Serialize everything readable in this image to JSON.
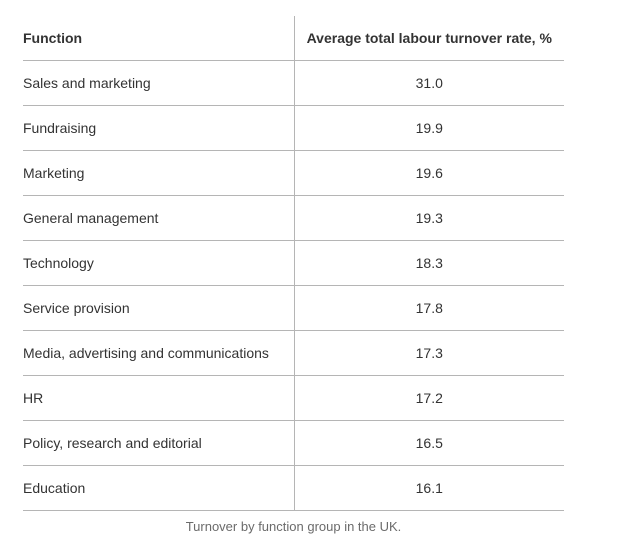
{
  "table": {
    "columns": [
      "Function",
      "Average total labour turnover rate, %"
    ],
    "rows": [
      {
        "function": "Sales and marketing",
        "rate": "31.0"
      },
      {
        "function": "Fundraising",
        "rate": "19.9"
      },
      {
        "function": "Marketing",
        "rate": "19.6"
      },
      {
        "function": "General management",
        "rate": "19.3"
      },
      {
        "function": "Technology",
        "rate": "18.3"
      },
      {
        "function": "Service provision",
        "rate": "17.8"
      },
      {
        "function": "Media, advertising and communications",
        "rate": "17.3"
      },
      {
        "function": "HR",
        "rate": "17.2"
      },
      {
        "function": "Policy, research and editorial",
        "rate": "16.5"
      },
      {
        "function": "Education",
        "rate": "16.1"
      }
    ]
  },
  "caption": "Turnover by function group in the UK.",
  "colors": {
    "text": "#333333",
    "divider": "#b5b5b5",
    "caption_text": "#6b6b6b",
    "background": "#ffffff"
  },
  "chart_data": {
    "type": "table",
    "title": "Turnover by function group in the UK.",
    "columns": [
      "Function",
      "Average total labour turnover rate, %"
    ],
    "categories": [
      "Sales and marketing",
      "Fundraising",
      "Marketing",
      "General management",
      "Technology",
      "Service provision",
      "Media, advertising and communications",
      "HR",
      "Policy, research and editorial",
      "Education"
    ],
    "values": [
      31.0,
      19.9,
      19.6,
      19.3,
      18.3,
      17.8,
      17.3,
      17.2,
      16.5,
      16.1
    ],
    "legend": "none",
    "grid": "horizontal-row-separators"
  }
}
